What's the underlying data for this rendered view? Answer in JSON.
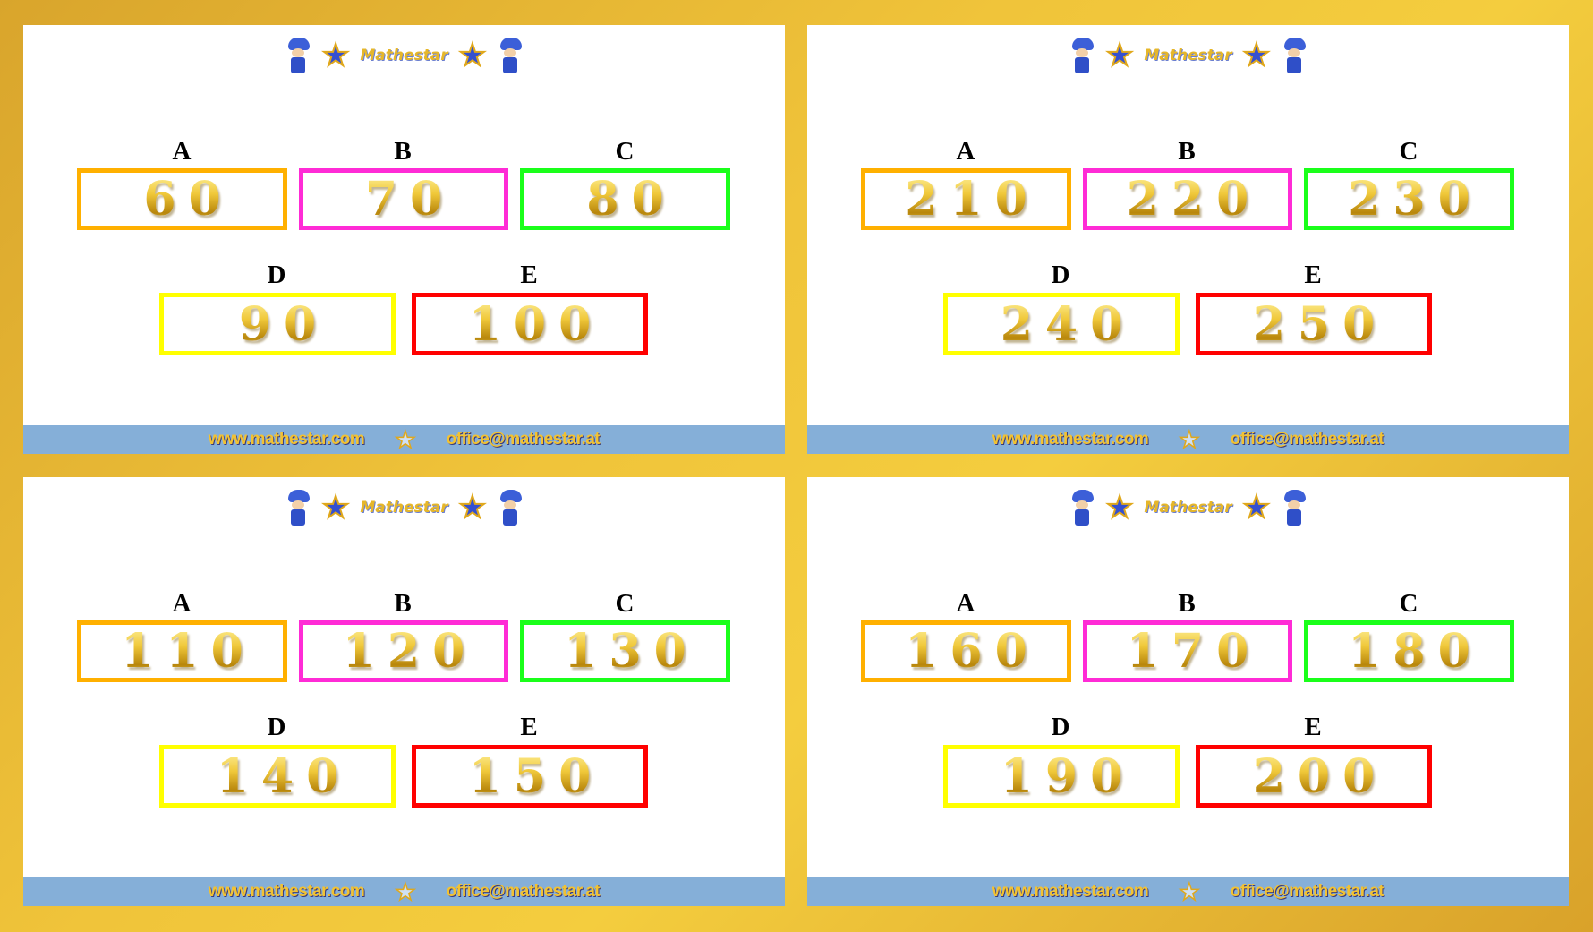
{
  "brand": {
    "name": "Mathestar",
    "website": "www.mathestar.com",
    "email": "office@mathestar.at"
  },
  "colors": {
    "A": "#ffb000",
    "B": "#ff2bd6",
    "C": "#1aff1a",
    "D": "#ffff00",
    "E": "#ff0000",
    "footer": "#85afd8"
  },
  "panels": [
    {
      "A": "60",
      "B": "70",
      "C": "80",
      "D": "90",
      "E": "100"
    },
    {
      "A": "210",
      "B": "220",
      "C": "230",
      "D": "240",
      "E": "250"
    },
    {
      "A": "110",
      "B": "120",
      "C": "130",
      "D": "140",
      "E": "150"
    },
    {
      "A": "160",
      "B": "170",
      "C": "180",
      "D": "190",
      "E": "200"
    }
  ],
  "labels": {
    "A": "A",
    "B": "B",
    "C": "C",
    "D": "D",
    "E": "E"
  }
}
